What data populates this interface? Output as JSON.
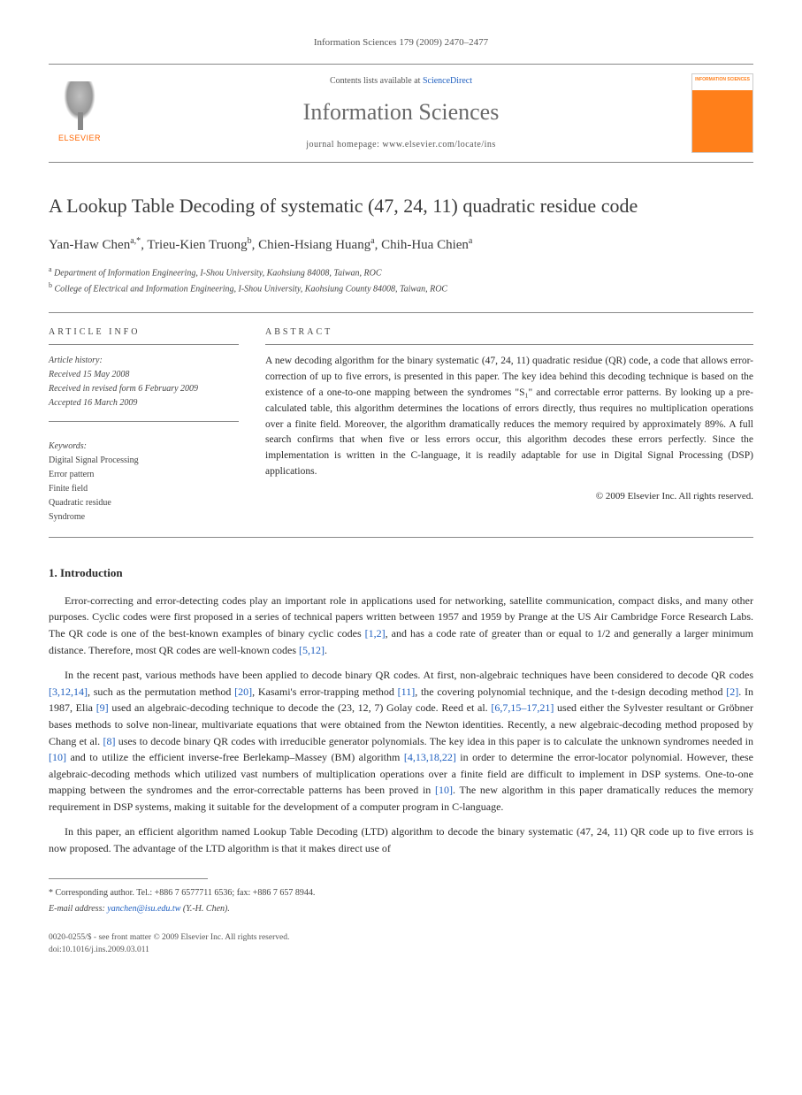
{
  "header": {
    "journal_ref": "Information Sciences 179 (2009) 2470–2477",
    "contents_prefix": "Contents lists available at ",
    "contents_link": "ScienceDirect",
    "journal_title": "Information Sciences",
    "homepage_prefix": "journal homepage: ",
    "homepage_url": "www.elsevier.com/locate/ins",
    "publisher": "ELSEVIER",
    "cover_label": "INFORMATION SCIENCES"
  },
  "article": {
    "title": "A Lookup Table Decoding of systematic (47, 24, 11) quadratic residue code",
    "authors_html": "Yan-Haw Chen",
    "author1": "Yan-Haw Chen",
    "author1_sup": "a,*",
    "author2": "Trieu-Kien Truong",
    "author2_sup": "b",
    "author3": "Chien-Hsiang Huang",
    "author3_sup": "a",
    "author4": "Chih-Hua Chien",
    "author4_sup": "a",
    "aff_a_sup": "a",
    "aff_a": "Department of Information Engineering, I-Shou University, Kaohsiung 84008, Taiwan, ROC",
    "aff_b_sup": "b",
    "aff_b": "College of Electrical and Information Engineering, I-Shou University, Kaohsiung County 84008, Taiwan, ROC"
  },
  "info": {
    "heading": "ARTICLE INFO",
    "history_label": "Article history:",
    "received": "Received 15 May 2008",
    "revised": "Received in revised form 6 February 2009",
    "accepted": "Accepted 16 March 2009",
    "keywords_label": "Keywords:",
    "keywords": [
      "Digital Signal Processing",
      "Error pattern",
      "Finite field",
      "Quadratic residue",
      "Syndrome"
    ]
  },
  "abstract": {
    "heading": "ABSTRACT",
    "body": "A new decoding algorithm for the binary systematic (47, 24, 11) quadratic residue (QR) code, a code that allows error-correction of up to five errors, is presented in this paper. The key idea behind this decoding technique is based on the existence of a one-to-one mapping between the syndromes \"S₁\" and correctable error patterns. By looking up a pre-calculated table, this algorithm determines the locations of errors directly, thus requires no multiplication operations over a finite field. Moreover, the algorithm dramatically reduces the memory required by approximately 89%. A full search confirms that when five or less errors occur, this algorithm decodes these errors perfectly. Since the implementation is written in the C-language, it is readily adaptable for use in Digital Signal Processing (DSP) applications.",
    "copyright": "© 2009 Elsevier Inc. All rights reserved."
  },
  "section1": {
    "title": "1. Introduction",
    "p1_a": "Error-correcting and error-detecting codes play an important role in applications used for networking, satellite communication, compact disks, and many other purposes. Cyclic codes were first proposed in a series of technical papers written between 1957 and 1959 by Prange at the US Air Cambridge Force Research Labs. The QR code is one of the best-known examples of binary cyclic codes ",
    "p1_ref1": "[1,2]",
    "p1_b": ", and has a code rate of greater than or equal to 1/2 and generally a larger minimum distance. Therefore, most QR codes are well-known codes ",
    "p1_ref2": "[5,12]",
    "p1_c": ".",
    "p2_a": "In the recent past, various methods have been applied to decode binary QR codes. At first, non-algebraic techniques have been considered to decode QR codes ",
    "p2_ref1": "[3,12,14]",
    "p2_b": ", such as the permutation method ",
    "p2_ref2": "[20]",
    "p2_c": ", Kasami's error-trapping method ",
    "p2_ref3": "[11]",
    "p2_d": ", the covering polynomial technique, and the t-design decoding method ",
    "p2_ref4": "[2]",
    "p2_e": ". In 1987, Elia ",
    "p2_ref5": "[9]",
    "p2_f": " used an algebraic-decoding technique to decode the (23, 12, 7) Golay code. Reed et al. ",
    "p2_ref6": "[6,7,15–17,21]",
    "p2_g": " used either the Sylvester resultant or Gröbner bases methods to solve non-linear, multivariate equations that were obtained from the Newton identities. Recently, a new algebraic-decoding method proposed by Chang et al. ",
    "p2_ref7": "[8]",
    "p2_h": " uses to decode binary QR codes with irreducible generator polynomials. The key idea in this paper is to calculate the unknown syndromes needed in ",
    "p2_ref8": "[10]",
    "p2_i": " and to utilize the efficient inverse-free Berlekamp–Massey (BM) algorithm ",
    "p2_ref9": "[4,13,18,22]",
    "p2_j": " in order to determine the error-locator polynomial. However, these algebraic-decoding methods which utilized vast numbers of multiplication operations over a finite field are difficult to implement in DSP systems. One-to-one mapping between the syndromes and the error-correctable patterns has been proved in ",
    "p2_ref10": "[10]",
    "p2_k": ". The new algorithm in this paper dramatically reduces the memory requirement in DSP systems, making it suitable for the development of a computer program in C-language.",
    "p3": "In this paper, an efficient algorithm named Lookup Table Decoding (LTD) algorithm to decode the binary systematic (47, 24, 11) QR code up to five errors is now proposed. The advantage of the LTD algorithm is that it makes direct use of"
  },
  "footer": {
    "corr_label": "* Corresponding author. Tel.: +886 7 6577711 6536; fax: +886 7 657 8944.",
    "email_label": "E-mail address: ",
    "email": "yanchen@isu.edu.tw",
    "email_suffix": " (Y.-H. Chen).",
    "issn_line": "0020-0255/$ - see front matter © 2009 Elsevier Inc. All rights reserved.",
    "doi_line": "doi:10.1016/j.ins.2009.03.011"
  },
  "colors": {
    "link": "#2060c0",
    "elsevier_orange": "#ff6600",
    "cover_orange": "#ff7f1a",
    "text": "#2a2a2a",
    "muted": "#555555",
    "rule": "#888888"
  }
}
